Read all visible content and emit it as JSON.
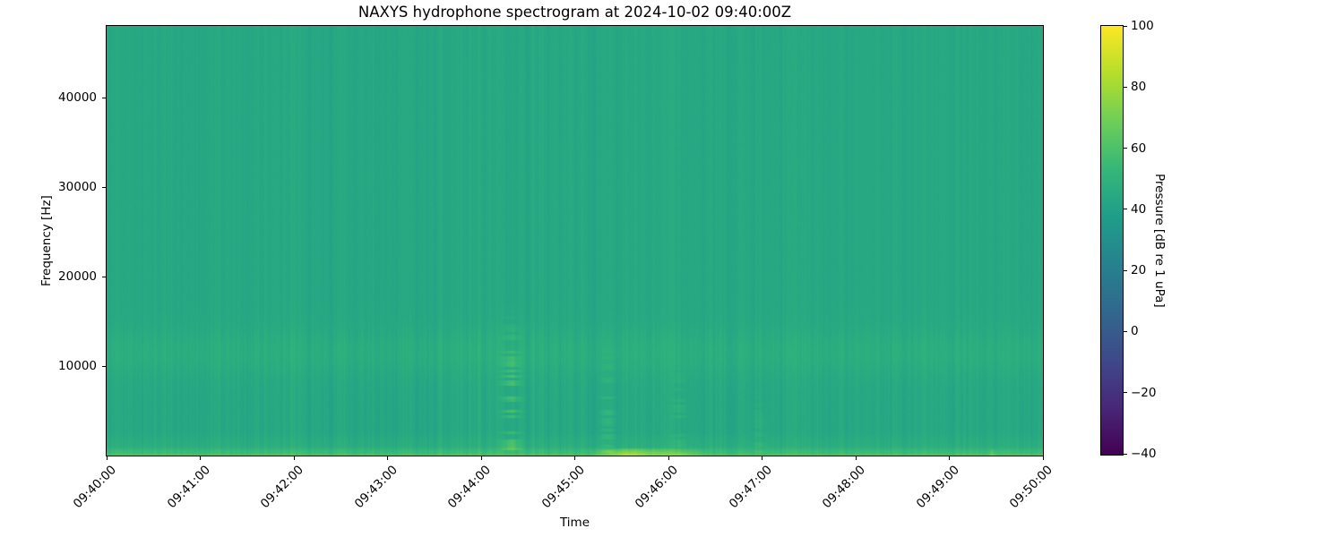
{
  "figure": {
    "background_color": "#ffffff",
    "text_color": "#000000"
  },
  "chart_data": {
    "type": "heatmap",
    "title": "NAXYS hydrophone spectrogram at 2024-10-02 09:40:00Z",
    "xlabel": "Time",
    "ylabel": "Frequency [Hz]",
    "x_tick_labels": [
      "09:40:00",
      "09:41:00",
      "09:42:00",
      "09:43:00",
      "09:44:00",
      "09:45:00",
      "09:46:00",
      "09:47:00",
      "09:48:00",
      "09:49:00",
      "09:50:00"
    ],
    "y_tick_values": [
      40000,
      30000,
      20000,
      10000
    ],
    "freq_range_hz": [
      0,
      48000
    ],
    "time_start": "09:40:00",
    "time_end": "09:50:00",
    "grid": false,
    "legend": "none",
    "background_level_db": 44,
    "striation_noise_db": 1.5,
    "colorbar": {
      "label": "Pressure [dB re 1 uPa]",
      "tick_values": [
        100,
        80,
        60,
        40,
        20,
        0,
        -20,
        -40
      ],
      "range_db": [
        -40,
        100
      ],
      "colormap": "viridis",
      "position": "right",
      "stops": [
        "#440154",
        "#482878",
        "#3e4a89",
        "#31688e",
        "#26828e",
        "#1f9e89",
        "#35b779",
        "#6ece58",
        "#b5de2b",
        "#fde725"
      ]
    },
    "bands": [
      {
        "name": "mid-frequency lighter band",
        "f_center_hz": 11500,
        "f_sigma_hz": 2600,
        "boost_db": 3.5
      },
      {
        "name": "low-frequency noise rise",
        "f_high_hz": 2500,
        "boost_db": 5,
        "falloff_exp": 0.7
      },
      {
        "name": "bright bottom band",
        "f_high_hz": 900,
        "boost_db": 9,
        "falloff_exp": 0.5
      }
    ],
    "events": [
      {
        "label": "broadband dotted transient",
        "pattern": "dotted",
        "time": "09:44:19",
        "f_high_hz": 17000,
        "boost_db": 14,
        "width_s": 8
      },
      {
        "label": "faint dotted transient",
        "pattern": "dotted",
        "time": "09:45:21",
        "f_high_hz": 13000,
        "boost_db": 7,
        "width_s": 6
      },
      {
        "label": "faint dotted transient",
        "pattern": "dotted",
        "time": "09:46:07",
        "f_high_hz": 11000,
        "boost_db": 5,
        "width_s": 6
      },
      {
        "label": "faint dotted transient",
        "pattern": "dotted",
        "time": "09:46:58",
        "f_high_hz": 8000,
        "boost_db": 4,
        "width_s": 6
      },
      {
        "label": "loud low-frequency event",
        "pattern": "bright-band",
        "time_start": "09:45:08",
        "time_end": "09:46:25",
        "f_high_hz": 850,
        "boost_db": 22
      },
      {
        "label": "minor low-frequency event",
        "pattern": "bright-band",
        "time_start": "09:49:25",
        "time_end": "09:49:31",
        "f_high_hz": 700,
        "boost_db": 9
      }
    ]
  }
}
